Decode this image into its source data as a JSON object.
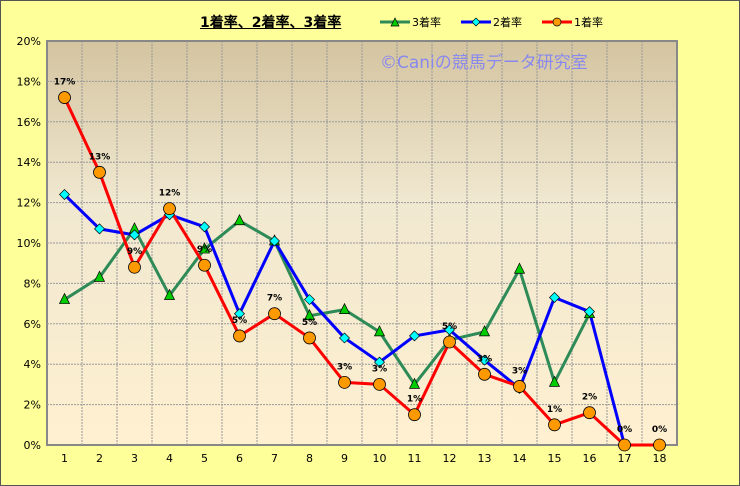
{
  "chart_data": {
    "type": "line",
    "title": "1着率、2着率、3着率",
    "watermark": "©Caniの競馬データ研究室",
    "x": [
      1,
      2,
      3,
      4,
      5,
      6,
      7,
      8,
      9,
      10,
      11,
      12,
      13,
      14,
      15,
      16,
      17,
      18
    ],
    "ylim": [
      0,
      20
    ],
    "yticks": [
      "0%",
      "2%",
      "4%",
      "6%",
      "8%",
      "10%",
      "12%",
      "14%",
      "16%",
      "18%",
      "20%"
    ],
    "grid": true,
    "legend_placement": "top",
    "series": [
      {
        "name": "3着率",
        "color": "#2e8b57",
        "marker": "triangle",
        "marker_color": "#00cc00",
        "values": [
          7.2,
          8.3,
          10.7,
          7.4,
          9.7,
          11.1,
          10.1,
          6.4,
          6.7,
          5.6,
          3.0,
          5.2,
          5.6,
          8.7,
          3.1,
          6.5,
          null,
          null
        ]
      },
      {
        "name": "2着率",
        "color": "#0000ff",
        "marker": "diamond",
        "marker_color": "#00ffff",
        "values": [
          12.4,
          10.7,
          10.4,
          11.4,
          10.8,
          6.5,
          10.1,
          7.2,
          5.3,
          4.1,
          5.4,
          5.7,
          4.2,
          2.8,
          7.3,
          6.6,
          0,
          null
        ]
      },
      {
        "name": "1着率",
        "color": "#ff0000",
        "marker": "circle",
        "marker_color": "#ff9900",
        "values": [
          17.2,
          13.5,
          8.8,
          11.7,
          8.9,
          5.4,
          6.5,
          5.3,
          3.1,
          3.0,
          1.5,
          5.1,
          3.5,
          2.9,
          1.0,
          1.6,
          0,
          0
        ],
        "labels": [
          "17%",
          "13%",
          "9%",
          "12%",
          "9%",
          "5%",
          "7%",
          "5%",
          "3%",
          "3%",
          "1%",
          "5%",
          "3%",
          "3%",
          "1%",
          "2%",
          "0%",
          "0%"
        ]
      }
    ]
  }
}
